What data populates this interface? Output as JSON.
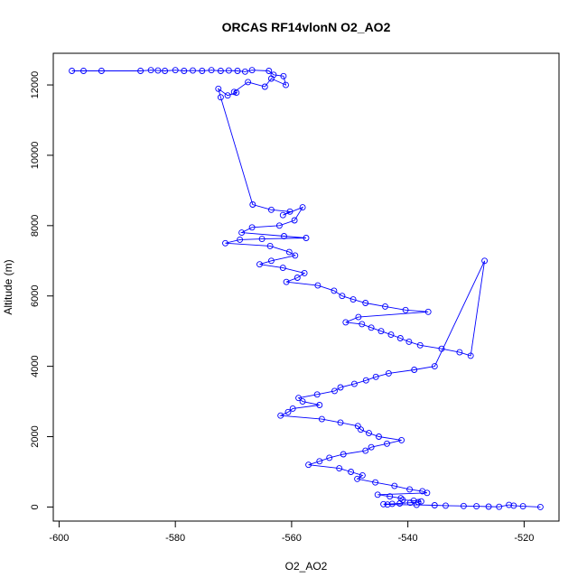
{
  "chart_data": {
    "type": "scatter",
    "title": "ORCAS RF14vlonN O2_AO2",
    "xlabel": "O2_AO2",
    "ylabel": "Altitude (m)",
    "xlim": [
      -601,
      -514
    ],
    "ylim": [
      -400,
      12900
    ],
    "xticks": [
      -600,
      -580,
      -560,
      -540,
      -520
    ],
    "xtick_labels": [
      "-600",
      "-580",
      "-560",
      "-540",
      "-520"
    ],
    "yticks": [
      0,
      2000,
      4000,
      6000,
      8000,
      10000,
      12000
    ],
    "ytick_labels": [
      "0",
      "2000",
      "4000",
      "6000",
      "8000",
      "10000",
      "12000"
    ],
    "grid": false,
    "legend": "none",
    "color": "#0000ff",
    "marker": "open-circle",
    "connected": true,
    "series": [
      {
        "x": [
          -597.8,
          -595.8,
          -592.7,
          -586.0,
          -584.2,
          -583.0,
          -581.8,
          -580.0,
          -578.5,
          -577.0,
          -575.4,
          -573.8,
          -572.2,
          -570.8,
          -569.3,
          -568.0,
          -566.8,
          -563.9,
          -563.1,
          -561.4,
          -561.0,
          -563.5,
          -564.6,
          -567.5,
          -569.9,
          -569.5,
          -571.0,
          -572.6,
          -572.2,
          -566.7,
          -563.5,
          -560.3,
          -561.5,
          -558.1,
          -559.5,
          -562.1,
          -566.8,
          -568.6,
          -561.3,
          -557.5,
          -565.1,
          -568.9,
          -571.4,
          -563.7,
          -560.4,
          -559.4,
          -563.5,
          -565.5,
          -561.5,
          -557.8,
          -559.0,
          -560.9,
          -555.5,
          -552.7,
          -551.3,
          -549.4,
          -547.3,
          -543.9,
          -540.4,
          -536.5,
          -548.5,
          -550.7,
          -547.9,
          -546.3,
          -544.6,
          -542.9,
          -541.3,
          -539.8,
          -537.9,
          -534.2,
          -531.1,
          -529.2,
          -526.8,
          -535.4,
          -538.9,
          -543.3,
          -545.5,
          -547.2,
          -549.2,
          -551.6,
          -552.6,
          -555.6,
          -558.8,
          -558.1,
          -555.2,
          -559.8,
          -560.6,
          -561.9,
          -554.8,
          -551.6,
          -548.6,
          -548.1,
          -546.7,
          -545.0,
          -541.1,
          -543.6,
          -546.3,
          -547.3,
          -551.1,
          -553.5,
          -555.2,
          -557.1,
          -551.8,
          -549.8,
          -547.8,
          -548.7,
          -545.6,
          -542.3,
          -539.7,
          -537.5,
          -536.7,
          -545.2,
          -543.1,
          -541.2,
          -540.9,
          -539.0,
          -537.7,
          -538.2,
          -539.6,
          -541.4,
          -542.7,
          -544.2,
          -543.5,
          -538.5,
          -535.4,
          -533.5,
          -530.4,
          -528.2,
          -526.1,
          -524.3,
          -522.6,
          -521.8,
          -520.2,
          -517.2
        ],
        "y": [
          12400,
          12400,
          12400,
          12400,
          12420,
          12410,
          12400,
          12420,
          12400,
          12410,
          12400,
          12420,
          12400,
          12410,
          12400,
          12380,
          12420,
          12400,
          12290,
          12250,
          12000,
          12180,
          11950,
          12080,
          11800,
          11780,
          11700,
          11890,
          11650,
          8600,
          8450,
          8400,
          8300,
          8520,
          8150,
          8000,
          7950,
          7800,
          7700,
          7650,
          7620,
          7600,
          7500,
          7420,
          7250,
          7150,
          7000,
          6900,
          6800,
          6650,
          6520,
          6400,
          6300,
          6150,
          6000,
          5900,
          5800,
          5700,
          5600,
          5550,
          5400,
          5250,
          5200,
          5100,
          5000,
          4900,
          4800,
          4700,
          4600,
          4500,
          4400,
          4300,
          7000,
          4000,
          3900,
          3800,
          3700,
          3600,
          3500,
          3400,
          3300,
          3200,
          3100,
          3000,
          2900,
          2800,
          2700,
          2600,
          2500,
          2400,
          2300,
          2200,
          2100,
          2000,
          1900,
          1800,
          1700,
          1600,
          1500,
          1400,
          1300,
          1200,
          1100,
          1000,
          900,
          800,
          700,
          600,
          500,
          450,
          400,
          350,
          300,
          250,
          200,
          180,
          160,
          140,
          120,
          100,
          90,
          80,
          70,
          60,
          50,
          40,
          30,
          20,
          10,
          5,
          60,
          40,
          20,
          0
        ]
      }
    ]
  }
}
